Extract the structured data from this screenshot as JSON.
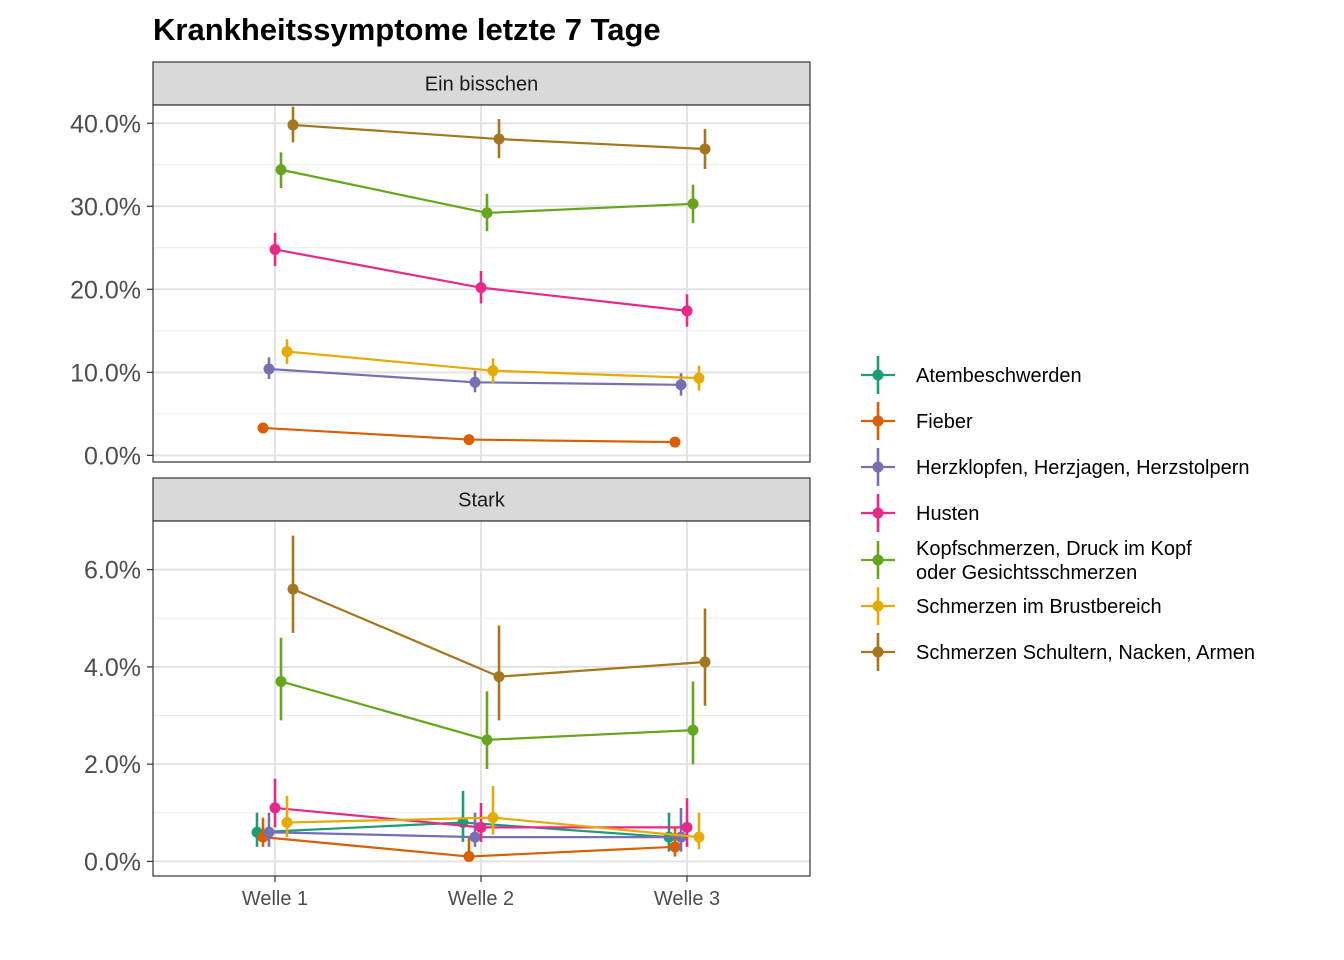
{
  "chart_data": {
    "type": "line",
    "title": "Krankheitssymptome letzte 7 Tage",
    "xlabel": "",
    "ylabel": "",
    "categories": [
      "Welle 1",
      "Welle 2",
      "Welle 3"
    ],
    "series_names": [
      "Atembeschwerden",
      "Fieber",
      "Herzklopfen, Herzjagen, Herzstolpern",
      "Husten",
      "Kopfschmerzen, Druck im Kopf\noder Gesichtsschmerzen",
      "Schmerzen im Brustbereich",
      "Schmerzen Schultern, Nacken, Armen"
    ],
    "legend_lines": [
      [
        "Atembeschwerden"
      ],
      [
        "Fieber"
      ],
      [
        "Herzklopfen, Herzjagen, Herzstolpern"
      ],
      [
        "Husten"
      ],
      [
        "Kopfschmerzen, Druck im Kopf",
        "oder Gesichtsschmerzen"
      ],
      [
        "Schmerzen im Brustbereich"
      ],
      [
        "Schmerzen Schultern, Nacken, Armen"
      ]
    ],
    "colors": [
      "#1b9e77",
      "#d95f02",
      "#7570b3",
      "#e7298a",
      "#66a61e",
      "#e6ab02",
      "#a6761d"
    ],
    "legend_position": "right",
    "panels": [
      {
        "strip": "Ein bisschen",
        "ylim": [
          -0.8,
          42.2
        ],
        "yticks": [
          0,
          10,
          20,
          30,
          40
        ],
        "ytick_labels": [
          "0.0%",
          "10.0%",
          "20.0%",
          "30.0%",
          "40.0%"
        ],
        "series": [
          {
            "name": "Atembeschwerden",
            "values": [
              null,
              null,
              null
            ],
            "lower": [
              null,
              null,
              null
            ],
            "upper": [
              null,
              null,
              null
            ]
          },
          {
            "name": "Fieber",
            "values": [
              3.3,
              1.9,
              1.6
            ],
            "lower": [
              3.0,
              1.6,
              1.3
            ],
            "upper": [
              3.7,
              2.2,
              1.9
            ]
          },
          {
            "name": "Herzklopfen, Herzjagen, Herzstolpern",
            "values": [
              10.4,
              8.8,
              8.5
            ],
            "lower": [
              9.2,
              7.6,
              7.2
            ],
            "upper": [
              11.8,
              10.2,
              9.9
            ]
          },
          {
            "name": "Husten",
            "values": [
              24.8,
              20.2,
              17.4
            ],
            "lower": [
              22.8,
              18.3,
              15.5
            ],
            "upper": [
              26.8,
              22.2,
              19.4
            ]
          },
          {
            "name": "Kopfschmerzen, Druck im Kopf\noder Gesichtsschmerzen",
            "values": [
              34.4,
              29.2,
              30.3
            ],
            "lower": [
              32.2,
              27.0,
              28.0
            ],
            "upper": [
              36.5,
              31.5,
              32.6
            ]
          },
          {
            "name": "Schmerzen im Brustbereich",
            "values": [
              12.5,
              10.2,
              9.3
            ],
            "lower": [
              11.0,
              8.7,
              7.8
            ],
            "upper": [
              14.0,
              11.7,
              10.8
            ]
          },
          {
            "name": "Schmerzen Schultern, Nacken, Armen",
            "values": [
              39.8,
              38.1,
              36.9
            ],
            "lower": [
              37.7,
              35.8,
              34.5
            ],
            "upper": [
              42.0,
              40.5,
              39.3
            ]
          }
        ]
      },
      {
        "strip": "Stark",
        "ylim": [
          -0.3,
          7.0
        ],
        "yticks": [
          0,
          2,
          4,
          6
        ],
        "ytick_labels": [
          "0.0%",
          "2.0%",
          "4.0%",
          "6.0%"
        ],
        "series": [
          {
            "name": "Atembeschwerden",
            "values": [
              0.6,
              0.8,
              0.5
            ],
            "lower": [
              0.3,
              0.4,
              0.2
            ],
            "upper": [
              1.0,
              1.45,
              1.0
            ]
          },
          {
            "name": "Fieber",
            "values": [
              0.5,
              0.1,
              0.3
            ],
            "lower": [
              0.3,
              0.05,
              0.1
            ],
            "upper": [
              0.9,
              0.5,
              0.7
            ]
          },
          {
            "name": "Herzklopfen, Herzjagen, Herzstolpern",
            "values": [
              0.6,
              0.5,
              0.5
            ],
            "lower": [
              0.3,
              0.3,
              0.2
            ],
            "upper": [
              1.0,
              1.0,
              1.1
            ]
          },
          {
            "name": "Husten",
            "values": [
              1.1,
              0.7,
              0.7
            ],
            "lower": [
              0.7,
              0.4,
              0.3
            ],
            "upper": [
              1.7,
              1.2,
              1.3
            ]
          },
          {
            "name": "Kopfschmerzen, Druck im Kopf\noder Gesichtsschmerzen",
            "values": [
              3.7,
              2.5,
              2.7
            ],
            "lower": [
              2.9,
              1.9,
              2.0
            ],
            "upper": [
              4.6,
              3.5,
              3.7
            ]
          },
          {
            "name": "Schmerzen im Brustbereich",
            "values": [
              0.8,
              0.9,
              0.5
            ],
            "lower": [
              0.5,
              0.55,
              0.25
            ],
            "upper": [
              1.35,
              1.55,
              1.0
            ]
          },
          {
            "name": "Schmerzen Schultern, Nacken, Armen",
            "values": [
              5.6,
              3.8,
              4.1
            ],
            "lower": [
              4.7,
              2.9,
              3.2
            ],
            "upper": [
              6.7,
              4.85,
              5.2
            ]
          }
        ]
      }
    ]
  }
}
